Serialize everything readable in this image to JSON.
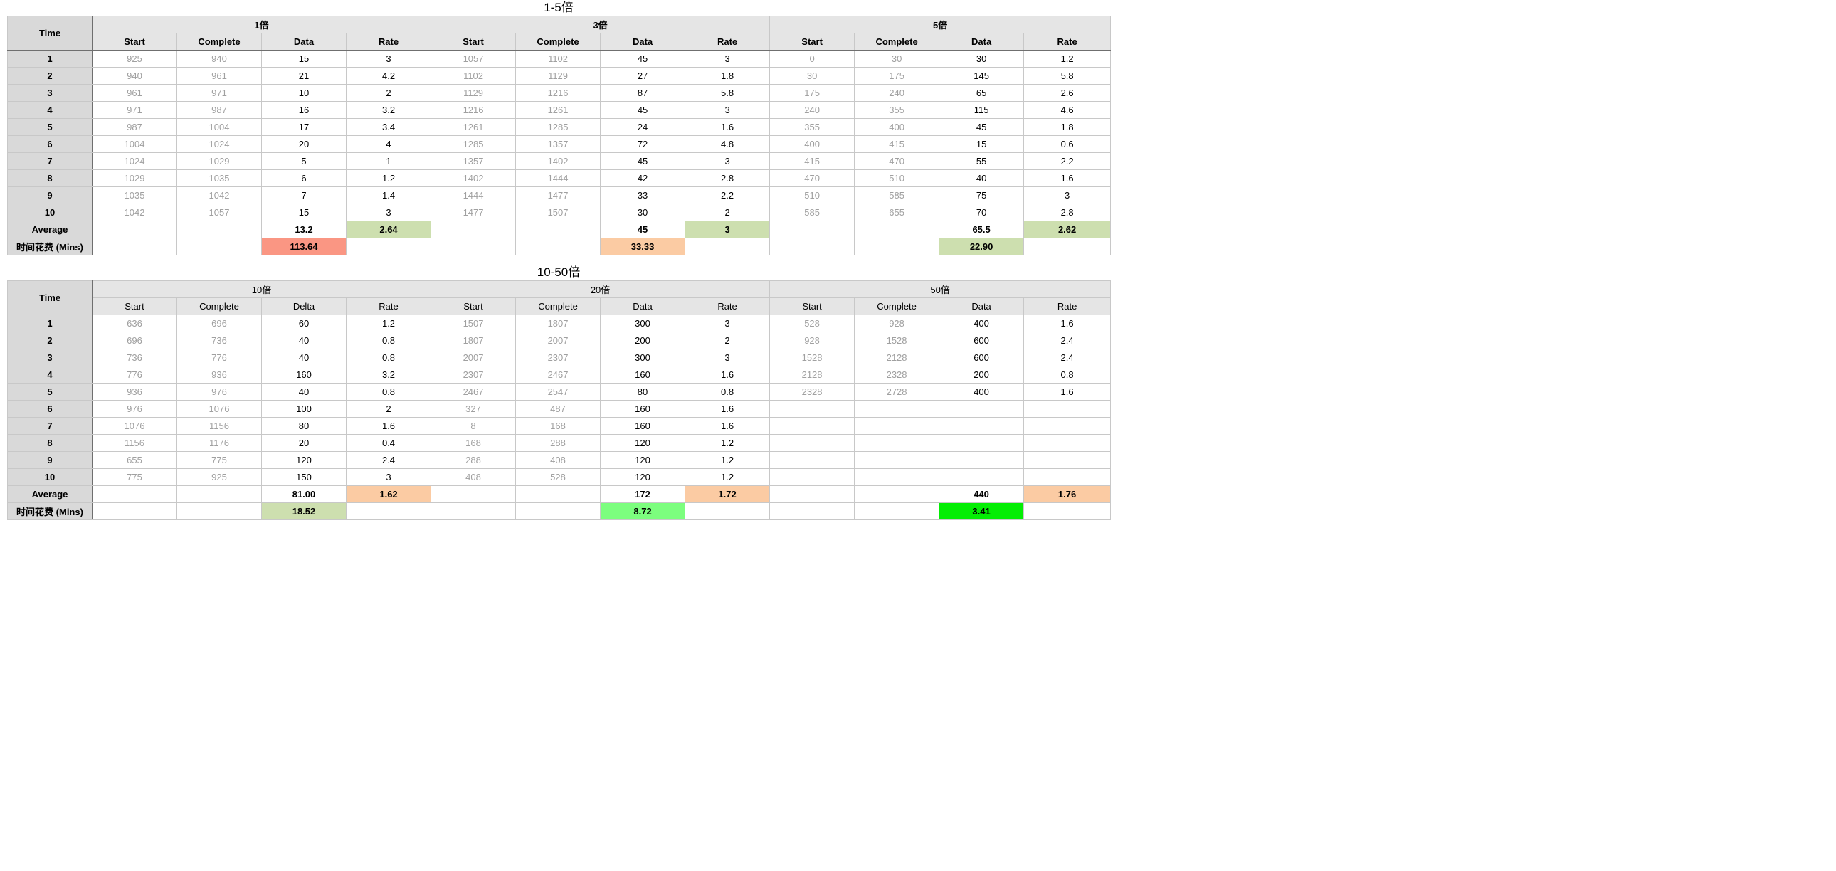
{
  "colors": {
    "header_bg": "#e5e5e5",
    "label_bg": "#d9d9d9",
    "muted_text": "#a0a0a0",
    "red_light": "#fa9683",
    "peach": "#fbcba3",
    "green_light": "#cddfaf",
    "green_mid": "#7cfe7e",
    "green_bright": "#04ee04"
  },
  "sections": [
    {
      "title": "1-5倍",
      "time_label": "Time",
      "groups": [
        {
          "name": "1倍",
          "columns": [
            "Start",
            "Complete",
            "Data",
            "Rate"
          ]
        },
        {
          "name": "3倍",
          "columns": [
            "Start",
            "Complete",
            "Data",
            "Rate"
          ]
        },
        {
          "name": "5倍",
          "columns": [
            "Start",
            "Complete",
            "Data",
            "Rate"
          ]
        }
      ],
      "rows": [
        {
          "label": "1",
          "cells": [
            "925",
            "940",
            "15",
            "3",
            "1057",
            "1102",
            "45",
            "3",
            "0",
            "30",
            "30",
            "1.2"
          ]
        },
        {
          "label": "2",
          "cells": [
            "940",
            "961",
            "21",
            "4.2",
            "1102",
            "1129",
            "27",
            "1.8",
            "30",
            "175",
            "145",
            "5.8"
          ]
        },
        {
          "label": "3",
          "cells": [
            "961",
            "971",
            "10",
            "2",
            "1129",
            "1216",
            "87",
            "5.8",
            "175",
            "240",
            "65",
            "2.6"
          ]
        },
        {
          "label": "4",
          "cells": [
            "971",
            "987",
            "16",
            "3.2",
            "1216",
            "1261",
            "45",
            "3",
            "240",
            "355",
            "115",
            "4.6"
          ]
        },
        {
          "label": "5",
          "cells": [
            "987",
            "1004",
            "17",
            "3.4",
            "1261",
            "1285",
            "24",
            "1.6",
            "355",
            "400",
            "45",
            "1.8"
          ]
        },
        {
          "label": "6",
          "cells": [
            "1004",
            "1024",
            "20",
            "4",
            "1285",
            "1357",
            "72",
            "4.8",
            "400",
            "415",
            "15",
            "0.6"
          ]
        },
        {
          "label": "7",
          "cells": [
            "1024",
            "1029",
            "5",
            "1",
            "1357",
            "1402",
            "45",
            "3",
            "415",
            "470",
            "55",
            "2.2"
          ]
        },
        {
          "label": "8",
          "cells": [
            "1029",
            "1035",
            "6",
            "1.2",
            "1402",
            "1444",
            "42",
            "2.8",
            "470",
            "510",
            "40",
            "1.6"
          ]
        },
        {
          "label": "9",
          "cells": [
            "1035",
            "1042",
            "7",
            "1.4",
            "1444",
            "1477",
            "33",
            "2.2",
            "510",
            "585",
            "75",
            "3"
          ]
        },
        {
          "label": "10",
          "cells": [
            "1042",
            "1057",
            "15",
            "3",
            "1477",
            "1507",
            "30",
            "2",
            "585",
            "655",
            "70",
            "2.8"
          ]
        }
      ],
      "average": {
        "label": "Average",
        "cells": [
          "",
          "",
          "13.2",
          "2.64",
          "",
          "",
          "45",
          "3",
          "",
          "",
          "65.5",
          "2.62"
        ],
        "highlights": [
          "",
          "",
          "",
          "#cddfaf",
          "",
          "",
          "",
          "#cddfaf",
          "",
          "",
          "",
          "#cddfaf"
        ]
      },
      "cost": {
        "label": "时间花费 (Mins)",
        "cells": [
          "",
          "",
          "113.64",
          "",
          "",
          "",
          "33.33",
          "",
          "",
          "",
          "22.90",
          ""
        ],
        "highlights": [
          "",
          "",
          "#fa9683",
          "",
          "",
          "",
          "#fbcba3",
          "",
          "",
          "",
          "#cddfaf",
          ""
        ]
      }
    },
    {
      "title": "10-50倍",
      "time_label": "Time",
      "groups": [
        {
          "name": "10倍",
          "columns": [
            "Start",
            "Complete",
            "Delta",
            "Rate"
          ]
        },
        {
          "name": "20倍",
          "columns": [
            "Start",
            "Complete",
            "Data",
            "Rate"
          ]
        },
        {
          "name": "50倍",
          "columns": [
            "Start",
            "Complete",
            "Data",
            "Rate"
          ]
        }
      ],
      "rows": [
        {
          "label": "1",
          "cells": [
            "636",
            "696",
            "60",
            "1.2",
            "1507",
            "1807",
            "300",
            "3",
            "528",
            "928",
            "400",
            "1.6"
          ]
        },
        {
          "label": "2",
          "cells": [
            "696",
            "736",
            "40",
            "0.8",
            "1807",
            "2007",
            "200",
            "2",
            "928",
            "1528",
            "600",
            "2.4"
          ]
        },
        {
          "label": "3",
          "cells": [
            "736",
            "776",
            "40",
            "0.8",
            "2007",
            "2307",
            "300",
            "3",
            "1528",
            "2128",
            "600",
            "2.4"
          ]
        },
        {
          "label": "4",
          "cells": [
            "776",
            "936",
            "160",
            "3.2",
            "2307",
            "2467",
            "160",
            "1.6",
            "2128",
            "2328",
            "200",
            "0.8"
          ]
        },
        {
          "label": "5",
          "cells": [
            "936",
            "976",
            "40",
            "0.8",
            "2467",
            "2547",
            "80",
            "0.8",
            "2328",
            "2728",
            "400",
            "1.6"
          ]
        },
        {
          "label": "6",
          "cells": [
            "976",
            "1076",
            "100",
            "2",
            "327",
            "487",
            "160",
            "1.6",
            "",
            "",
            "",
            ""
          ]
        },
        {
          "label": "7",
          "cells": [
            "1076",
            "1156",
            "80",
            "1.6",
            "8",
            "168",
            "160",
            "1.6",
            "",
            "",
            "",
            ""
          ]
        },
        {
          "label": "8",
          "cells": [
            "1156",
            "1176",
            "20",
            "0.4",
            "168",
            "288",
            "120",
            "1.2",
            "",
            "",
            "",
            ""
          ]
        },
        {
          "label": "9",
          "cells": [
            "655",
            "775",
            "120",
            "2.4",
            "288",
            "408",
            "120",
            "1.2",
            "",
            "",
            "",
            ""
          ]
        },
        {
          "label": "10",
          "cells": [
            "775",
            "925",
            "150",
            "3",
            "408",
            "528",
            "120",
            "1.2",
            "",
            "",
            "",
            ""
          ]
        }
      ],
      "average": {
        "label": "Average",
        "cells": [
          "",
          "",
          "81.00",
          "1.62",
          "",
          "",
          "172",
          "1.72",
          "",
          "",
          "440",
          "1.76"
        ],
        "highlights": [
          "",
          "",
          "",
          "#fbcba3",
          "",
          "",
          "",
          "#fbcba3",
          "",
          "",
          "",
          "#fbcba3"
        ]
      },
      "cost": {
        "label": "时间花费 (Mins)",
        "cells": [
          "",
          "",
          "18.52",
          "",
          "",
          "",
          "8.72",
          "",
          "",
          "",
          "3.41",
          ""
        ],
        "highlights": [
          "",
          "",
          "#cddfaf",
          "",
          "",
          "",
          "#7cfe7e",
          "",
          "",
          "",
          "#04ee04",
          ""
        ]
      }
    }
  ]
}
